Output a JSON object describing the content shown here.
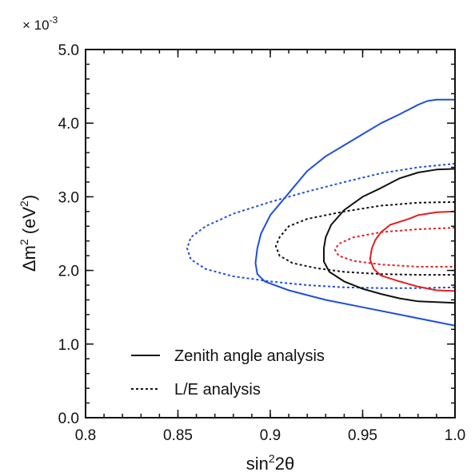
{
  "chart_data": {
    "type": "line",
    "xlabel_base": "sin",
    "xlabel_sup": "2",
    "xlabel_rest": "2θ",
    "ylabel_base": "Δm",
    "ylabel_sup": "2",
    "ylabel_mid": " (eV",
    "ylabel_sup2": "2",
    "ylabel_end": ")",
    "y_multiplier_prefix": "× 10",
    "y_multiplier_exp": "-3",
    "xlim": [
      0.8,
      1.0
    ],
    "ylim": [
      0.0,
      5.0
    ],
    "x_ticks": [
      0.8,
      0.85,
      0.9,
      0.95,
      1.0
    ],
    "x_tick_labels": [
      "0.8",
      "0.85",
      "0.9",
      "0.95",
      "1.0"
    ],
    "y_ticks": [
      0.0,
      1.0,
      2.0,
      3.0,
      4.0,
      5.0
    ],
    "y_tick_labels": [
      "0.0",
      "1.0",
      "2.0",
      "3.0",
      "4.0",
      "5.0"
    ],
    "grid": false,
    "legend_position": "bottom-left",
    "legend": [
      {
        "label": "Zenith angle analysis",
        "style": "solid"
      },
      {
        "label": "L/E analysis",
        "style": "dotted"
      }
    ],
    "series": [
      {
        "style": "solid",
        "color": "#1f4fd8",
        "points": [
          [
            1.0,
            4.32
          ],
          [
            0.99,
            4.32
          ],
          [
            0.985,
            4.3
          ],
          [
            0.98,
            4.25
          ],
          [
            0.97,
            4.12
          ],
          [
            0.96,
            4.0
          ],
          [
            0.95,
            3.85
          ],
          [
            0.94,
            3.7
          ],
          [
            0.93,
            3.55
          ],
          [
            0.92,
            3.35
          ],
          [
            0.91,
            3.05
          ],
          [
            0.9,
            2.75
          ],
          [
            0.895,
            2.5
          ],
          [
            0.893,
            2.3
          ],
          [
            0.892,
            2.1
          ],
          [
            0.893,
            1.95
          ],
          [
            0.897,
            1.85
          ],
          [
            0.91,
            1.73
          ],
          [
            0.93,
            1.6
          ],
          [
            0.95,
            1.5
          ],
          [
            0.97,
            1.4
          ],
          [
            0.99,
            1.3
          ],
          [
            1.0,
            1.25
          ]
        ]
      },
      {
        "style": "dotted",
        "color": "#1f4fd8",
        "points": [
          [
            1.0,
            3.45
          ],
          [
            0.98,
            3.4
          ],
          [
            0.96,
            3.32
          ],
          [
            0.94,
            3.2
          ],
          [
            0.92,
            3.07
          ],
          [
            0.9,
            2.93
          ],
          [
            0.88,
            2.77
          ],
          [
            0.865,
            2.6
          ],
          [
            0.857,
            2.45
          ],
          [
            0.855,
            2.3
          ],
          [
            0.857,
            2.15
          ],
          [
            0.865,
            2.02
          ],
          [
            0.88,
            1.92
          ],
          [
            0.9,
            1.85
          ],
          [
            0.92,
            1.8
          ],
          [
            0.94,
            1.77
          ],
          [
            0.96,
            1.76
          ],
          [
            0.98,
            1.76
          ],
          [
            1.0,
            1.77
          ]
        ]
      },
      {
        "style": "solid",
        "color": "#111111",
        "points": [
          [
            1.0,
            3.38
          ],
          [
            0.99,
            3.37
          ],
          [
            0.98,
            3.33
          ],
          [
            0.97,
            3.25
          ],
          [
            0.96,
            3.12
          ],
          [
            0.95,
            3.0
          ],
          [
            0.94,
            2.82
          ],
          [
            0.933,
            2.62
          ],
          [
            0.93,
            2.45
          ],
          [
            0.929,
            2.3
          ],
          [
            0.929,
            2.12
          ],
          [
            0.932,
            1.98
          ],
          [
            0.94,
            1.85
          ],
          [
            0.95,
            1.75
          ],
          [
            0.96,
            1.68
          ],
          [
            0.97,
            1.62
          ],
          [
            0.98,
            1.58
          ],
          [
            1.0,
            1.56
          ]
        ]
      },
      {
        "style": "dotted",
        "color": "#111111",
        "points": [
          [
            1.0,
            2.93
          ],
          [
            0.98,
            2.92
          ],
          [
            0.96,
            2.88
          ],
          [
            0.94,
            2.8
          ],
          [
            0.92,
            2.7
          ],
          [
            0.91,
            2.6
          ],
          [
            0.905,
            2.45
          ],
          [
            0.903,
            2.33
          ],
          [
            0.905,
            2.2
          ],
          [
            0.912,
            2.1
          ],
          [
            0.925,
            2.03
          ],
          [
            0.94,
            1.98
          ],
          [
            0.96,
            1.95
          ],
          [
            0.98,
            1.94
          ],
          [
            1.0,
            1.94
          ]
        ]
      },
      {
        "style": "solid",
        "color": "#e02020",
        "points": [
          [
            1.0,
            2.8
          ],
          [
            0.99,
            2.79
          ],
          [
            0.98,
            2.75
          ],
          [
            0.975,
            2.7
          ],
          [
            0.965,
            2.62
          ],
          [
            0.96,
            2.52
          ],
          [
            0.957,
            2.42
          ],
          [
            0.955,
            2.3
          ],
          [
            0.954,
            2.15
          ],
          [
            0.956,
            2.02
          ],
          [
            0.96,
            1.93
          ],
          [
            0.97,
            1.85
          ],
          [
            0.98,
            1.78
          ],
          [
            0.99,
            1.73
          ],
          [
            1.0,
            1.72
          ]
        ]
      },
      {
        "style": "dotted",
        "color": "#e02020",
        "points": [
          [
            1.0,
            2.58
          ],
          [
            0.98,
            2.56
          ],
          [
            0.96,
            2.52
          ],
          [
            0.945,
            2.45
          ],
          [
            0.937,
            2.36
          ],
          [
            0.935,
            2.28
          ],
          [
            0.937,
            2.2
          ],
          [
            0.945,
            2.13
          ],
          [
            0.96,
            2.08
          ],
          [
            0.98,
            2.05
          ],
          [
            1.0,
            2.05
          ]
        ]
      }
    ]
  }
}
